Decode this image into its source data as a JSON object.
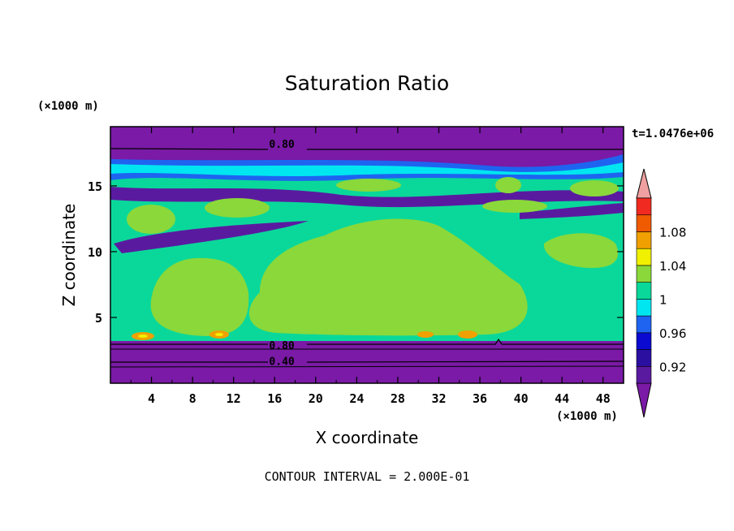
{
  "chart_data": {
    "type": "contour",
    "title": "Saturation Ratio",
    "xlabel": "X coordinate",
    "ylabel": "Z coordinate",
    "x_unit": "(×1000 m)",
    "y_unit": "(×1000 m)",
    "time_label": "t=1.0476e+06",
    "footer": "CONTOUR INTERVAL = 2.000E-01",
    "xlim": [
      0,
      50
    ],
    "ylim": [
      0,
      19.5
    ],
    "x_ticks": [
      4,
      8,
      12,
      16,
      20,
      24,
      28,
      32,
      36,
      40,
      44,
      48
    ],
    "y_ticks": [
      5,
      10,
      15
    ],
    "contour_line_labels": [
      {
        "text": "0.80",
        "x": 16.7,
        "y": 18.2
      },
      {
        "text": "0.80",
        "x": 16.7,
        "y": 2.9
      },
      {
        "text": "0.40",
        "x": 16.7,
        "y": 1.7
      }
    ],
    "colorbar": {
      "levels": [
        0.9,
        0.92,
        0.94,
        0.96,
        0.98,
        1.0,
        1.02,
        1.04,
        1.06,
        1.08,
        1.1
      ],
      "colors": [
        "#5a1aa0",
        "#2b0fa0",
        "#0a0ad0",
        "#1e64f0",
        "#00e6f0",
        "#0ad89a",
        "#8ad83a",
        "#f0f000",
        "#f0a000",
        "#f05a00",
        "#f02a20"
      ],
      "low_color": "#7a1aa6",
      "high_color": "#f0a0a0",
      "tick_labels": [
        "0.92",
        "0.96",
        "1",
        "1.04",
        "1.08"
      ]
    }
  }
}
